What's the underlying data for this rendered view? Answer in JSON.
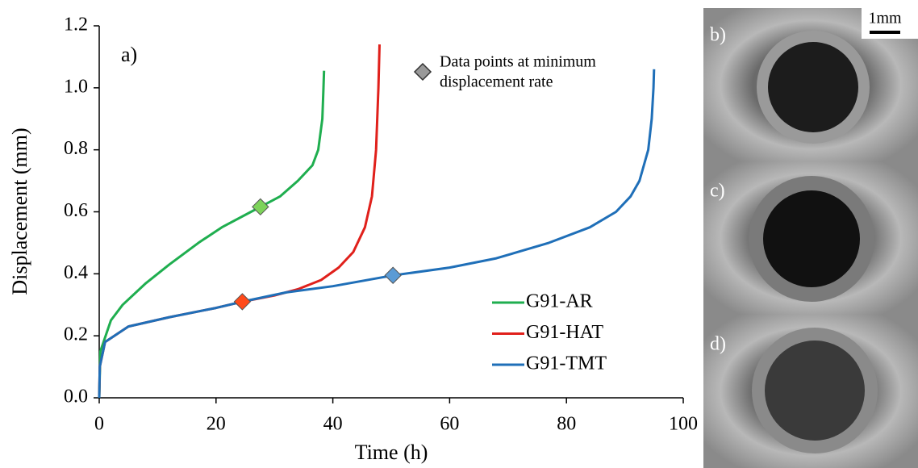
{
  "chart_data": {
    "type": "line",
    "panel_label": "a)",
    "xlabel": "Time (h)",
    "ylabel": "Displacement (mm)",
    "xlim": [
      0,
      100
    ],
    "ylim": [
      0,
      1.2
    ],
    "xticks": [
      0,
      20,
      40,
      60,
      80,
      100
    ],
    "yticks": [
      {
        "value": 0,
        "label": "0.0"
      },
      {
        "value": 0.2,
        "label": "0.2"
      },
      {
        "value": 0.4,
        "label": "0.4"
      },
      {
        "value": 0.6,
        "label": "0.6"
      },
      {
        "value": 0.8,
        "label": "0.8"
      },
      {
        "value": 1,
        "label": "1.0"
      },
      {
        "value": 1.2,
        "label": "1.2"
      }
    ],
    "grid": false,
    "series": [
      {
        "name": "G91-AR",
        "color": "#1fae4f",
        "x": [
          0,
          0.2,
          2,
          4,
          8,
          12,
          17,
          21,
          26,
          27.6,
          31,
          34,
          36.5,
          37.5,
          38.2,
          38.4,
          38.5
        ],
        "values": [
          0,
          0.15,
          0.25,
          0.3,
          0.37,
          0.43,
          0.5,
          0.55,
          0.6,
          0.616,
          0.65,
          0.7,
          0.75,
          0.8,
          0.9,
          1.0,
          1.055
        ]
      },
      {
        "name": "G91-HAT",
        "color": "#e0201b",
        "x": [
          0,
          0.1,
          1,
          5,
          12,
          20,
          24.5,
          30,
          34,
          38,
          41,
          43.5,
          45.5,
          46.7,
          47.4,
          47.8,
          48
        ],
        "values": [
          0,
          0.1,
          0.18,
          0.23,
          0.26,
          0.29,
          0.31,
          0.33,
          0.35,
          0.38,
          0.42,
          0.47,
          0.55,
          0.65,
          0.8,
          1.0,
          1.14
        ]
      },
      {
        "name": "G91-TMT",
        "color": "#1f6fb8",
        "x": [
          0,
          0.1,
          1,
          5,
          12,
          20,
          24.5,
          32,
          40,
          50.3,
          60,
          68,
          77,
          84,
          88.5,
          91,
          92.5,
          94,
          94.6,
          94.9,
          95
        ],
        "values": [
          0,
          0.1,
          0.18,
          0.23,
          0.26,
          0.29,
          0.31,
          0.34,
          0.36,
          0.395,
          0.42,
          0.45,
          0.5,
          0.55,
          0.6,
          0.65,
          0.7,
          0.8,
          0.9,
          1.0,
          1.06
        ]
      }
    ],
    "markers": {
      "name": [
        "Data points at minimum",
        "displacement rate"
      ],
      "color": "#999999",
      "points": [
        {
          "x": 27.6,
          "y": 0.616,
          "color": "#7dd35a"
        },
        {
          "x": 24.5,
          "y": 0.31,
          "color": "#ff4a1a"
        },
        {
          "x": 50.3,
          "y": 0.395,
          "color": "#5b9bd5"
        }
      ]
    }
  },
  "panels": [
    {
      "label": "b)"
    },
    {
      "label": "c)"
    },
    {
      "label": "d)"
    }
  ],
  "scale_bar": "1mm"
}
